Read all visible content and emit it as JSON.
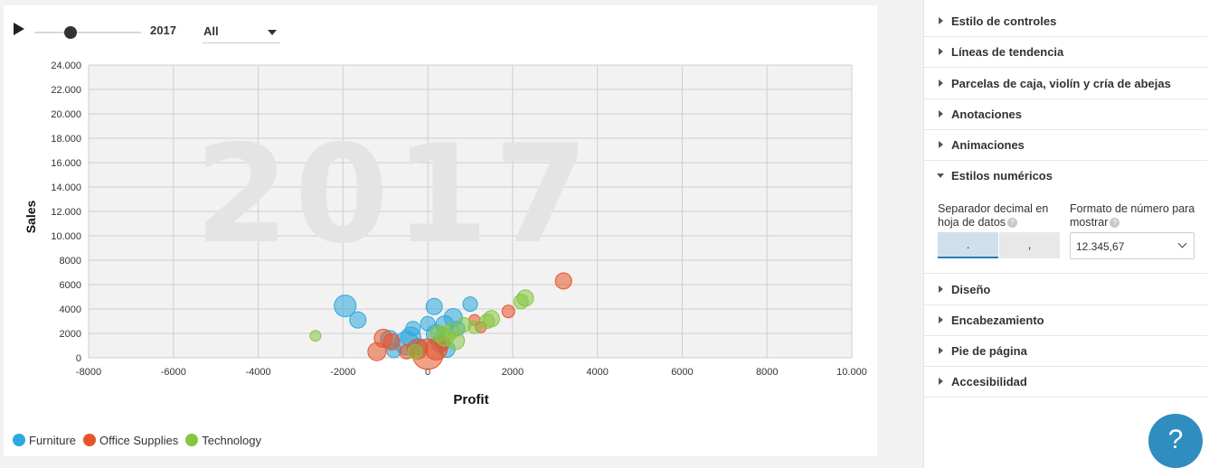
{
  "controls": {
    "year": "2017",
    "filter_value": "All"
  },
  "chart_data": {
    "type": "scatter",
    "title": "",
    "watermark": "2017",
    "xlabel": "Profit",
    "ylabel": "Sales",
    "xlim": [
      -8000,
      10000
    ],
    "ylim": [
      0,
      24000
    ],
    "x_ticks": [
      -8000,
      -6000,
      -4000,
      -2000,
      0,
      2000,
      4000,
      6000,
      8000,
      10000
    ],
    "x_tick_labels": [
      "-8000",
      "-6000",
      "-4000",
      "-2000",
      "0",
      "2000",
      "4000",
      "6000",
      "8000",
      "10.000"
    ],
    "y_ticks": [
      0,
      2000,
      4000,
      6000,
      8000,
      10000,
      12000,
      14000,
      16000,
      18000,
      20000,
      22000,
      24000
    ],
    "y_tick_labels": [
      "0",
      "2000",
      "4000",
      "6000",
      "8000",
      "10.000",
      "12.000",
      "14.000",
      "16.000",
      "18.000",
      "20.000",
      "22.000",
      "24.000"
    ],
    "grid": true,
    "legend_position": "bottom-left",
    "series": [
      {
        "name": "Furniture",
        "color": "#2ea8df",
        "points": [
          {
            "x": -1950,
            "y": 4250,
            "r": 12
          },
          {
            "x": -1650,
            "y": 3100,
            "r": 9
          },
          {
            "x": -900,
            "y": 1500,
            "r": 10
          },
          {
            "x": -800,
            "y": 600,
            "r": 8
          },
          {
            "x": -500,
            "y": 1200,
            "r": 13
          },
          {
            "x": -400,
            "y": 1700,
            "r": 11
          },
          {
            "x": -350,
            "y": 2400,
            "r": 8
          },
          {
            "x": -200,
            "y": 900,
            "r": 9
          },
          {
            "x": 0,
            "y": 2800,
            "r": 8
          },
          {
            "x": 150,
            "y": 4200,
            "r": 9
          },
          {
            "x": 200,
            "y": 1900,
            "r": 11
          },
          {
            "x": 300,
            "y": 1200,
            "r": 10
          },
          {
            "x": 400,
            "y": 2700,
            "r": 10
          },
          {
            "x": 600,
            "y": 3300,
            "r": 10
          },
          {
            "x": 700,
            "y": 2400,
            "r": 8
          },
          {
            "x": 1000,
            "y": 4400,
            "r": 8
          },
          {
            "x": 450,
            "y": 700,
            "r": 9
          }
        ]
      },
      {
        "name": "Office Supplies",
        "color": "#e8542a",
        "points": [
          {
            "x": -1200,
            "y": 500,
            "r": 10
          },
          {
            "x": -1050,
            "y": 1600,
            "r": 10
          },
          {
            "x": -850,
            "y": 1300,
            "r": 9
          },
          {
            "x": -500,
            "y": 500,
            "r": 8
          },
          {
            "x": -250,
            "y": 700,
            "r": 11
          },
          {
            "x": 0,
            "y": 300,
            "r": 17
          },
          {
            "x": 200,
            "y": 700,
            "r": 12
          },
          {
            "x": 350,
            "y": 1200,
            "r": 8
          },
          {
            "x": 1100,
            "y": 3100,
            "r": 6
          },
          {
            "x": 1250,
            "y": 2500,
            "r": 6
          },
          {
            "x": 1900,
            "y": 3800,
            "r": 7
          },
          {
            "x": 3200,
            "y": 6300,
            "r": 9
          }
        ]
      },
      {
        "name": "Technology",
        "color": "#86c542",
        "points": [
          {
            "x": -2650,
            "y": 1800,
            "r": 6
          },
          {
            "x": -300,
            "y": 500,
            "r": 8
          },
          {
            "x": 250,
            "y": 2000,
            "r": 9
          },
          {
            "x": 400,
            "y": 1700,
            "r": 10
          },
          {
            "x": 550,
            "y": 2200,
            "r": 9
          },
          {
            "x": 650,
            "y": 1400,
            "r": 10
          },
          {
            "x": 850,
            "y": 2700,
            "r": 8
          },
          {
            "x": 1100,
            "y": 2500,
            "r": 7
          },
          {
            "x": 1400,
            "y": 3000,
            "r": 8
          },
          {
            "x": 1500,
            "y": 3200,
            "r": 9
          },
          {
            "x": 2200,
            "y": 4600,
            "r": 8
          },
          {
            "x": 2300,
            "y": 4900,
            "r": 9
          }
        ]
      }
    ]
  },
  "side_panel": {
    "rows_top": [
      "Estilo de controles",
      "Líneas de tendencia",
      "Parcelas de caja, violín y cría de abejas",
      "Anotaciones",
      "Animaciones",
      "Estilos numéricos"
    ],
    "numeric_styles": {
      "decimal_label_1": "Separador decimal en",
      "decimal_label_2": "hoja de datos",
      "decimal_options": [
        ".",
        ","
      ],
      "format_label_1": "Formato de número para",
      "format_label_2": "mostrar",
      "format_value": "12.345,67",
      "help_glyph": "?"
    },
    "rows_bottom": [
      "Diseño",
      "Encabezamiento",
      "Pie de página",
      "Accesibilidad"
    ]
  },
  "help_button": {
    "glyph": "?"
  }
}
